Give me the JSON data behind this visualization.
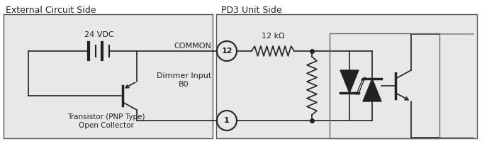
{
  "bg_color": "#f0f0f0",
  "box_fill": "#e8e8e8",
  "dark": "#222222",
  "gray": "#888888",
  "title_left": "External Circuit Side",
  "title_right": "PD3 Unit Side",
  "label_24vdc": "24 VDC",
  "label_common": "COMMON",
  "label_dimmer": "Dimmer Input\nB0",
  "label_12kohm": "12 kΩ",
  "label_transistor": "Transistor (PNP Type)\nOpen Collector"
}
